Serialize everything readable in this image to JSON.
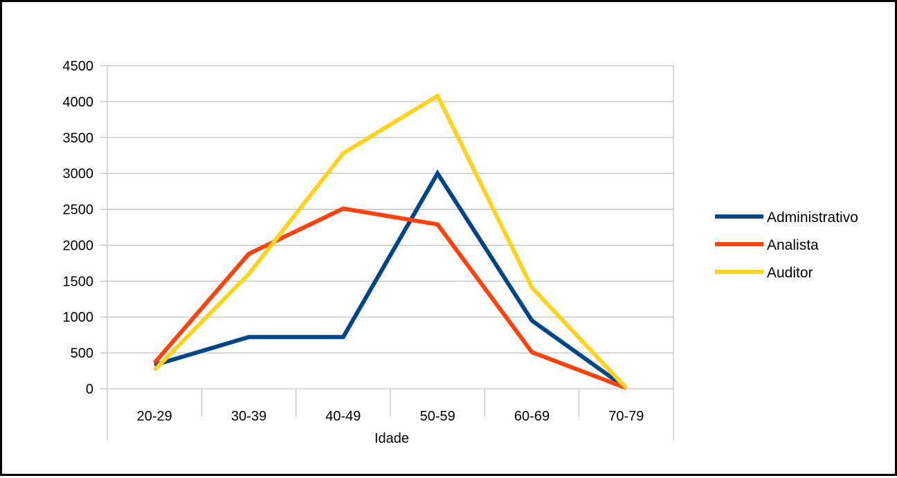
{
  "chart_data": {
    "type": "line",
    "categories": [
      "20-29",
      "30-39",
      "40-49",
      "50-59",
      "60-69",
      "70-79"
    ],
    "series": [
      {
        "name": "Administrativo",
        "color": "#004586",
        "values": [
          330,
          720,
          720,
          3000,
          950,
          10
        ]
      },
      {
        "name": "Analista",
        "color": "#ff420e",
        "values": [
          360,
          1880,
          2510,
          2290,
          510,
          10
        ]
      },
      {
        "name": "Auditor",
        "color": "#ffd320",
        "values": [
          260,
          1600,
          3280,
          4080,
          1410,
          10
        ]
      }
    ],
    "title": "",
    "xlabel": "Idade",
    "ylabel": "",
    "ylim": [
      0,
      4500
    ],
    "yticks": [
      0,
      500,
      1000,
      1500,
      2000,
      2500,
      3000,
      3500,
      4000,
      4500
    ],
    "grid": true,
    "legend_position": "right"
  }
}
